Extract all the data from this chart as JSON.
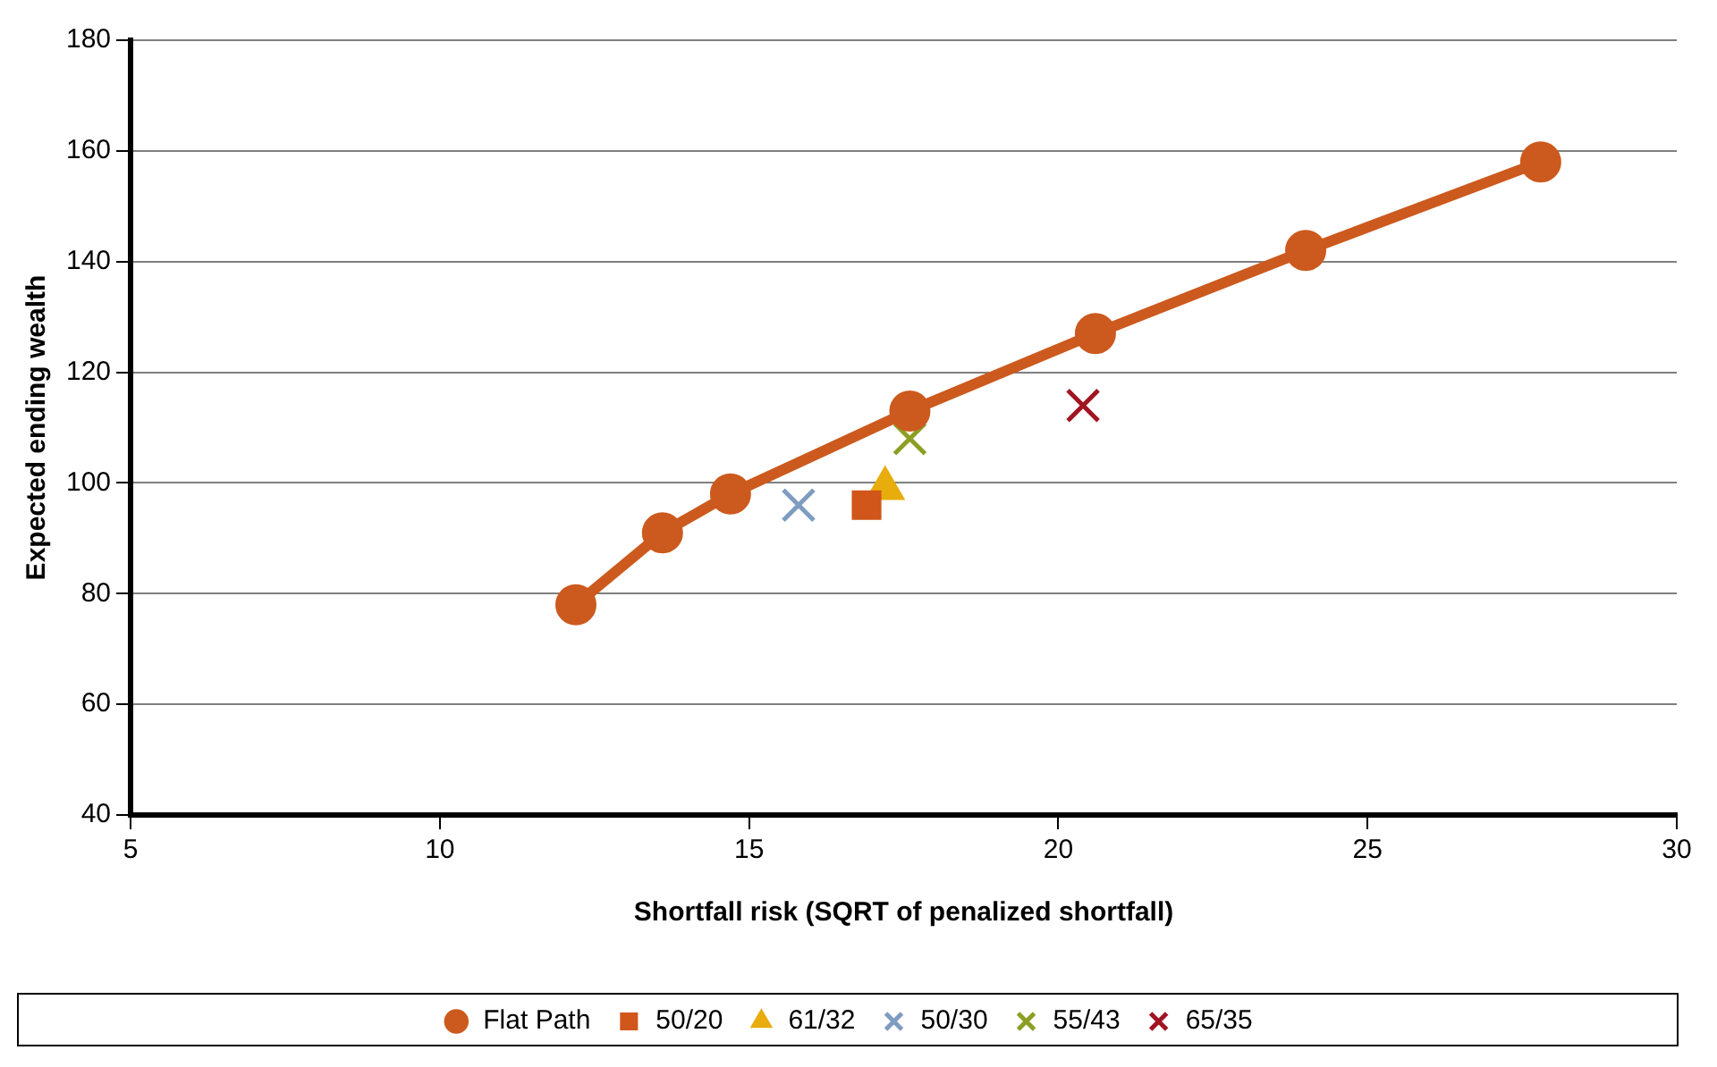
{
  "chart_data": {
    "type": "line",
    "xlabel": "Shortfall risk (SQRT of penalized shortfall)",
    "ylabel": "Expected ending wealth",
    "xlim": [
      5,
      30
    ],
    "xticks": [
      5,
      10,
      15,
      20,
      25,
      30
    ],
    "ylim": [
      40,
      180
    ],
    "yticks": [
      40,
      60,
      80,
      100,
      120,
      140,
      160,
      180
    ],
    "grid": "y",
    "legend": "bottom",
    "series": [
      {
        "name": "Flat Path",
        "marker": "circle",
        "color": "#cc5a1e",
        "x": [
          12.2,
          13.6,
          14.7,
          17.6,
          20.6,
          24.0,
          27.8
        ],
        "values": [
          78,
          91,
          98,
          113,
          127,
          142,
          158
        ]
      },
      {
        "name": "50/20",
        "type": "scatter",
        "marker": "square",
        "color": "#d0561a",
        "x": [
          16.9
        ],
        "values": [
          96
        ]
      },
      {
        "name": "61/32",
        "type": "scatter",
        "marker": "triangle",
        "color": "#e8ac0c",
        "x": [
          17.2
        ],
        "values": [
          99
        ]
      },
      {
        "name": "50/30",
        "type": "scatter",
        "marker": "cross",
        "color": "#7f9cc0",
        "x": [
          15.8
        ],
        "values": [
          96
        ]
      },
      {
        "name": "55/43",
        "type": "scatter",
        "marker": "cross",
        "color": "#8c9f24",
        "x": [
          17.6
        ],
        "values": [
          108
        ]
      },
      {
        "name": "65/35",
        "type": "scatter",
        "marker": "cross",
        "color": "#a01522",
        "x": [
          20.4
        ],
        "values": [
          114
        ]
      }
    ]
  }
}
